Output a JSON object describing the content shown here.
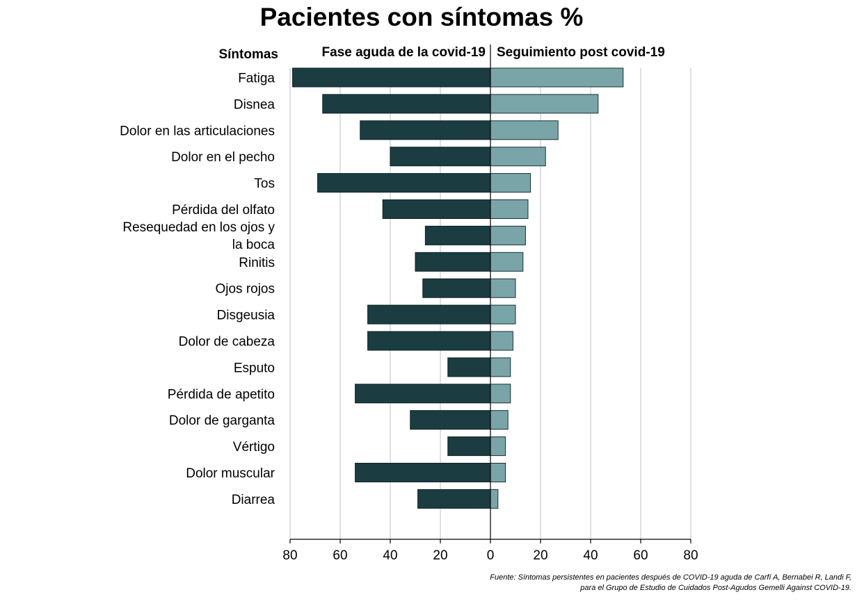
{
  "chart_data": {
    "type": "bar",
    "orientation": "horizontal-diverging",
    "title": "Pacientes con síntomas %",
    "category_header": "Síntomas",
    "categories": [
      "Fatiga",
      "Disnea",
      "Dolor en las articulaciones",
      "Dolor en el pecho",
      "Tos",
      "Pérdida del olfato",
      "Resequedad en los ojos y la boca",
      "Rinitis",
      "Ojos rojos",
      "Disgeusia",
      "Dolor de cabeza",
      "Esputo",
      "Pérdida de apetito",
      "Dolor de garganta",
      "Vértigo",
      "Dolor muscular",
      "Diarrea"
    ],
    "series": [
      {
        "name": "Fase aguda de la covid-19",
        "side": "left",
        "color": "#1b3d42",
        "values": [
          79,
          67,
          52,
          40,
          69,
          43,
          26,
          30,
          27,
          49,
          49,
          17,
          54,
          32,
          17,
          54,
          29
        ]
      },
      {
        "name": "Seguimiento post covid-19",
        "side": "right",
        "color": "#7aa5a8",
        "values": [
          53,
          43,
          27,
          22,
          16,
          15,
          14,
          13,
          10,
          10,
          9,
          8,
          8,
          7,
          6,
          6,
          3
        ]
      }
    ],
    "xlim": [
      -80,
      80
    ],
    "xticks": [
      -80,
      -60,
      -40,
      -20,
      0,
      20,
      40,
      60,
      80
    ],
    "xtick_labels": [
      "80",
      "60",
      "40",
      "20",
      "0",
      "20",
      "40",
      "60",
      "80"
    ],
    "grid": true,
    "source_lines": [
      "Fuente: Síntomas persistentes en pacientes después de COVID-19 aguda de Carfí A, Bernabei R, Landi F,",
      "para el Grupo de Estudio de Cuidados Post-Agudos Gemelli Against COVID-19."
    ]
  }
}
